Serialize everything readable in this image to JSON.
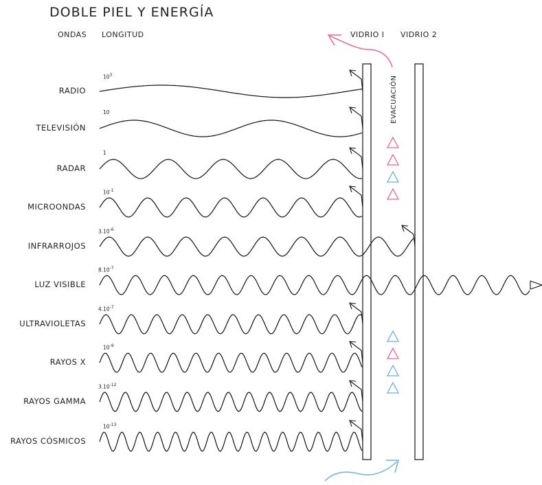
{
  "title": "DOBLE PIEL Y ENERGÍA",
  "headers": {
    "ondas": "ONDAS",
    "longitud": "LONGITUD",
    "vidrio1": "VIDRIO I",
    "vidrio2": "VIDRIO 2"
  },
  "evacuacion": "EVACUACIÓN",
  "colors": {
    "hot": "#e8668a",
    "cold": "#6aaee6",
    "line": "#111111"
  },
  "waves": [
    {
      "name": "RADIO",
      "length_base": "10",
      "length_exp": "3",
      "passes": "reflected"
    },
    {
      "name": "TELEVISIÓN",
      "length_base": "10",
      "length_exp": "",
      "passes": "reflected"
    },
    {
      "name": "RADAR",
      "length_base": "1",
      "length_exp": "",
      "passes": "reflected"
    },
    {
      "name": "MICROONDAS",
      "length_base": "10",
      "length_exp": "-1",
      "passes": "reflected"
    },
    {
      "name": "INFRARROJOS",
      "length_base": "3.10",
      "length_exp": "-6",
      "passes": "vidrio 2"
    },
    {
      "name": "LUZ VISIBLE",
      "length_base": "8.10",
      "length_exp": "-7",
      "passes": "through"
    },
    {
      "name": "ULTRAVIOLETAS",
      "length_base": "4.10",
      "length_exp": "-7",
      "passes": "reflected"
    },
    {
      "name": "RAYOS X",
      "length_base": "10",
      "length_exp": "-9",
      "passes": "reflected"
    },
    {
      "name": "RAYOS GAMMA",
      "length_base": "3.10",
      "length_exp": "-12",
      "passes": "reflected"
    },
    {
      "name": "RAYOS CÓSMICOS",
      "length_base": "10",
      "length_exp": "-13",
      "passes": "reflected"
    }
  ],
  "upper_triangles": [
    "hot",
    "hot",
    "cold",
    "hot"
  ],
  "lower_triangles": [
    "cold",
    "hot",
    "cold",
    "cold"
  ]
}
